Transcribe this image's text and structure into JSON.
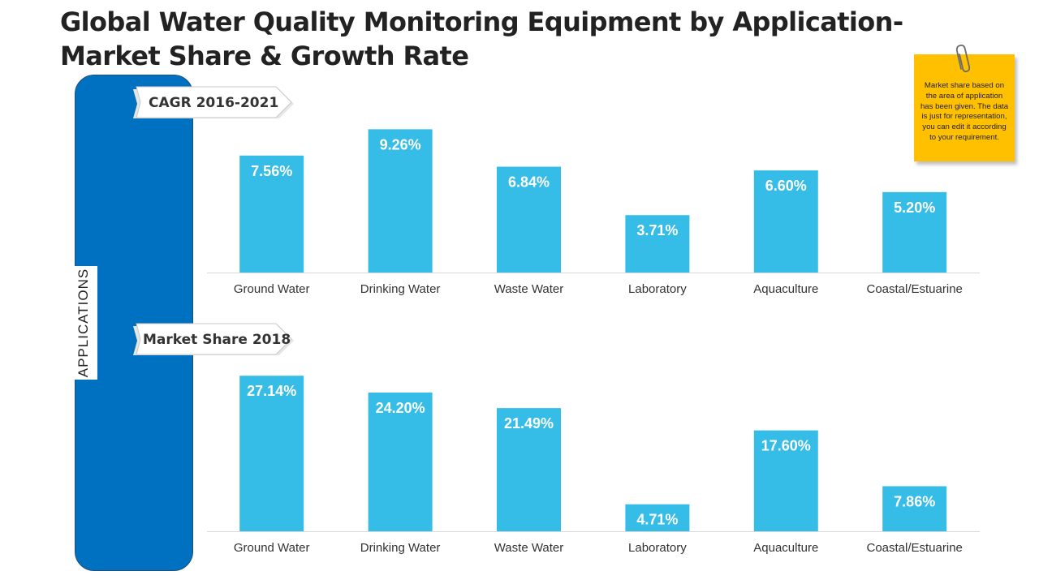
{
  "title": "Global Water Quality Monitoring Equipment by Application- Market Share & Growth Rate",
  "side_label": "APPLICATIONS",
  "note": "Market share based on the area of application has been given. The data is just for representation, you can edit it according to your requirement.",
  "colors": {
    "bar": "#35bde8",
    "sidebar": "#0070c0",
    "note": "#ffc000",
    "axis": "#d9d9d9"
  },
  "chart_data": [
    {
      "type": "bar",
      "title": "CAGR 2016-2021",
      "categories": [
        "Ground Water",
        "Drinking Water",
        "Waste Water",
        "Laboratory",
        "Aquaculture",
        "Coastal/Estuarine"
      ],
      "values": [
        7.56,
        9.26,
        6.84,
        3.71,
        6.6,
        5.2
      ],
      "labels": [
        "7.56%",
        "9.26%",
        "6.84%",
        "3.71%",
        "6.60%",
        "5.20%"
      ],
      "ylim": [
        0,
        10.8
      ],
      "xlabel": "",
      "ylabel": "",
      "grid": false
    },
    {
      "type": "bar",
      "title": "Market Share 2018",
      "categories": [
        "Ground Water",
        "Drinking Water",
        "Waste Water",
        "Laboratory",
        "Aquaculture",
        "Coastal/Estuarine"
      ],
      "values": [
        27.14,
        24.2,
        21.49,
        4.71,
        17.6,
        7.86
      ],
      "labels": [
        "27.14%",
        "24.20%",
        "21.49%",
        "4.71%",
        "17.60%",
        "7.86%"
      ],
      "ylim": [
        0,
        30
      ],
      "xlabel": "",
      "ylabel": "",
      "grid": false
    }
  ]
}
